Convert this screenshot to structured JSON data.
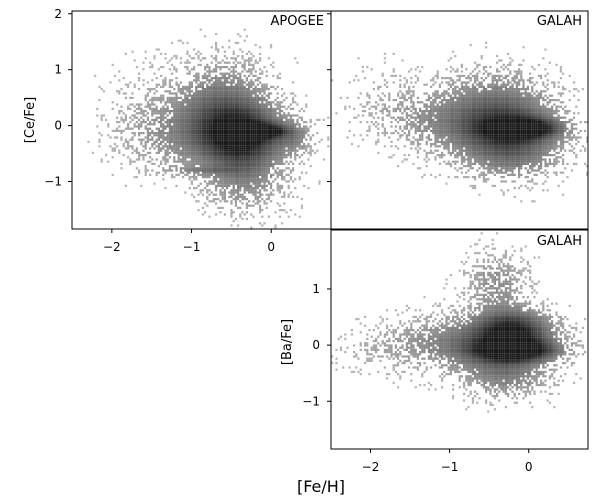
{
  "figure": {
    "xlabel": "[Fe/H]"
  },
  "chart_data": [
    {
      "type": "heatmap",
      "survey": "APOGEE",
      "xlabel": "",
      "ylabel": "[Ce/Fe]",
      "xlim": [
        -2.5,
        0.75
      ],
      "ylim": [
        -1.85,
        2.05
      ],
      "xticks": [
        -2,
        -1,
        0
      ],
      "yticks": [
        -1,
        0,
        1,
        2
      ],
      "ytick_labels": [
        "−1",
        "0",
        "1",
        "2"
      ],
      "xtick_labels": [
        "−2",
        "−1",
        "0"
      ],
      "components": [
        {
          "cx": -0.1,
          "cy": -0.1,
          "sx": 0.18,
          "sy": 0.08,
          "w": 1.3
        },
        {
          "cx": -0.35,
          "cy": -0.15,
          "sx": 0.35,
          "sy": 0.3,
          "w": 1.0
        },
        {
          "cx": -0.6,
          "cy": 0.2,
          "sx": 0.4,
          "sy": 0.55,
          "w": 0.9
        },
        {
          "cx": -0.35,
          "cy": -0.75,
          "sx": 0.35,
          "sy": 0.5,
          "w": 0.6
        },
        {
          "cx": -0.9,
          "cy": -0.8,
          "sx": 0.35,
          "sy": 0.04,
          "w": 0.35
        },
        {
          "cx": -1.3,
          "cy": -0.2,
          "sx": 0.4,
          "sy": 0.4,
          "w": 0.3
        },
        {
          "cx": -1.6,
          "cy": 0.35,
          "sx": 0.35,
          "sy": 0.45,
          "w": 0.12
        },
        {
          "cx": 0.3,
          "cy": -0.2,
          "sx": 0.15,
          "sy": 0.2,
          "w": 0.4
        }
      ]
    },
    {
      "type": "heatmap",
      "survey": "GALAH",
      "xlabel": "",
      "ylabel": "",
      "xlim": [
        -2.5,
        0.75
      ],
      "ylim": [
        -1.85,
        2.05
      ],
      "xticks": [],
      "yticks": [],
      "components": [
        {
          "cx": -0.05,
          "cy": -0.05,
          "sx": 0.3,
          "sy": 0.12,
          "w": 1.3
        },
        {
          "cx": -0.3,
          "cy": -0.1,
          "sx": 0.45,
          "sy": 0.35,
          "w": 1.1
        },
        {
          "cx": -0.4,
          "cy": 0.45,
          "sx": 0.45,
          "sy": 0.4,
          "w": 0.5
        },
        {
          "cx": -0.2,
          "cy": -0.6,
          "sx": 0.4,
          "sy": 0.3,
          "w": 0.4
        },
        {
          "cx": -1.2,
          "cy": 0.1,
          "sx": 0.45,
          "sy": 0.35,
          "w": 0.35
        },
        {
          "cx": -1.8,
          "cy": 0.5,
          "sx": 0.35,
          "sy": 0.4,
          "w": 0.12
        }
      ]
    },
    {
      "type": "heatmap",
      "survey": "GALAH",
      "xlabel": "",
      "ylabel": "[Ba/Fe]",
      "xlim": [
        -2.5,
        0.75
      ],
      "ylim": [
        -1.85,
        2.05
      ],
      "xticks": [
        -2,
        -1,
        0
      ],
      "yticks": [
        -1,
        0,
        1
      ],
      "xtick_labels": [
        "−2",
        "−1",
        "0"
      ],
      "ytick_labels": [
        "−1",
        "0",
        "1"
      ],
      "components": [
        {
          "cx": -0.15,
          "cy": -0.1,
          "sx": 0.35,
          "sy": 0.12,
          "w": 1.2
        },
        {
          "cx": -0.2,
          "cy": 0.25,
          "sx": 0.3,
          "sy": 0.25,
          "w": 1.0
        },
        {
          "cx": -0.35,
          "cy": 0.0,
          "sx": 0.45,
          "sy": 0.35,
          "w": 1.0
        },
        {
          "cx": -0.4,
          "cy": 1.1,
          "sx": 0.25,
          "sy": 0.35,
          "w": 0.45
        },
        {
          "cx": -0.3,
          "cy": -0.6,
          "sx": 0.35,
          "sy": 0.25,
          "w": 0.4
        },
        {
          "cx": -1.2,
          "cy": 0.05,
          "sx": 0.4,
          "sy": 0.3,
          "w": 0.35
        },
        {
          "cx": -1.9,
          "cy": -0.1,
          "sx": 0.35,
          "sy": 0.3,
          "w": 0.15
        }
      ]
    }
  ]
}
